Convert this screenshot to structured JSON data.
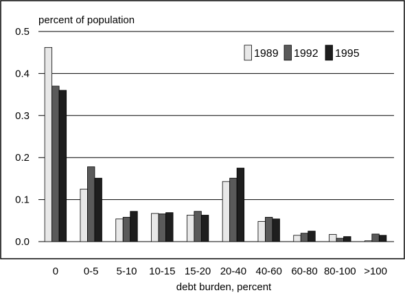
{
  "chart_data": {
    "type": "bar",
    "title": "",
    "ylabel": "percent of population",
    "xlabel": "debt burden, percent",
    "categories": [
      "0",
      "0-5",
      "5-10",
      "10-15",
      "15-20",
      "20-40",
      "40-60",
      "60-80",
      "80-100",
      ">100"
    ],
    "yticks": [
      "0.0",
      "0.1",
      "0.2",
      "0.3",
      "0.4",
      "0.5"
    ],
    "ylim": [
      0,
      0.5
    ],
    "grid": true,
    "legend_position": "top-right",
    "series": [
      {
        "name": "1989",
        "color": "#e8e8e8",
        "values": [
          0.462,
          0.125,
          0.054,
          0.067,
          0.063,
          0.143,
          0.048,
          0.015,
          0.017,
          0.002
        ]
      },
      {
        "name": "1992",
        "color": "#5a5a5a",
        "values": [
          0.37,
          0.178,
          0.058,
          0.066,
          0.072,
          0.151,
          0.058,
          0.02,
          0.008,
          0.018
        ]
      },
      {
        "name": "1995",
        "color": "#1e1e1e",
        "values": [
          0.36,
          0.151,
          0.072,
          0.069,
          0.063,
          0.175,
          0.054,
          0.025,
          0.012,
          0.015
        ]
      }
    ]
  }
}
